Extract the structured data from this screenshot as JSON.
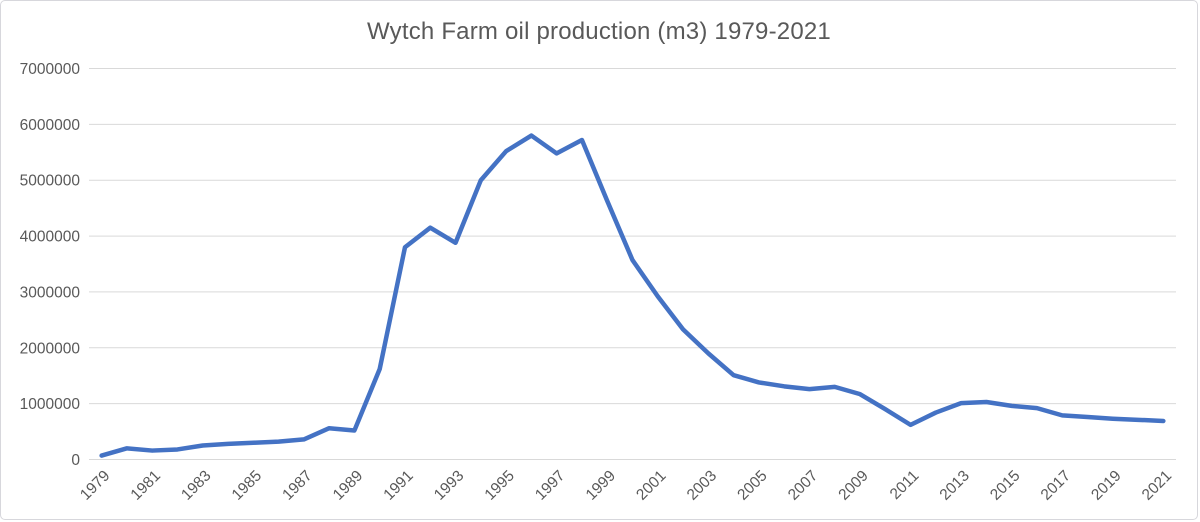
{
  "chart": {
    "title": "Wytch Farm oil production (m3) 1979-2021"
  },
  "colors": {
    "series_line": "#4472C4",
    "gridline": "#D9D9D9",
    "axis_text": "#595959",
    "background": "#FFFFFF"
  },
  "chart_data": {
    "type": "line",
    "title": "Wytch Farm oil production (m3) 1979-2021",
    "xlabel": "",
    "ylabel": "",
    "x": [
      1979,
      1980,
      1981,
      1982,
      1983,
      1984,
      1985,
      1986,
      1987,
      1988,
      1989,
      1990,
      1991,
      1992,
      1993,
      1994,
      1995,
      1996,
      1997,
      1998,
      1999,
      2000,
      2001,
      2002,
      2003,
      2004,
      2005,
      2006,
      2007,
      2008,
      2009,
      2010,
      2011,
      2012,
      2013,
      2014,
      2015,
      2016,
      2017,
      2018,
      2019,
      2020,
      2021
    ],
    "values": [
      70000,
      200000,
      160000,
      180000,
      250000,
      280000,
      300000,
      320000,
      360000,
      560000,
      520000,
      1620000,
      3800000,
      4150000,
      3880000,
      5000000,
      5520000,
      5800000,
      5480000,
      5720000,
      4630000,
      3570000,
      2920000,
      2330000,
      1900000,
      1510000,
      1380000,
      1310000,
      1260000,
      1300000,
      1170000,
      900000,
      620000,
      840000,
      1010000,
      1030000,
      960000,
      920000,
      790000,
      760000,
      730000,
      710000,
      690000
    ],
    "series_name": "Oil production (m3)",
    "ylim": [
      0,
      7000000
    ],
    "ytick_interval": 1000000,
    "ytick_labels": [
      "0",
      "1000000",
      "2000000",
      "3000000",
      "4000000",
      "5000000",
      "6000000",
      "7000000"
    ],
    "xtick_labels": [
      "1979",
      "1981",
      "1983",
      "1985",
      "1987",
      "1989",
      "1991",
      "1993",
      "1995",
      "1997",
      "1999",
      "2001",
      "2003",
      "2005",
      "2007",
      "2009",
      "2011",
      "2013",
      "2015",
      "2017",
      "2019",
      "2021"
    ],
    "xtick_rotation_deg": -45,
    "grid": true,
    "legend": false,
    "legend_position": "none"
  }
}
